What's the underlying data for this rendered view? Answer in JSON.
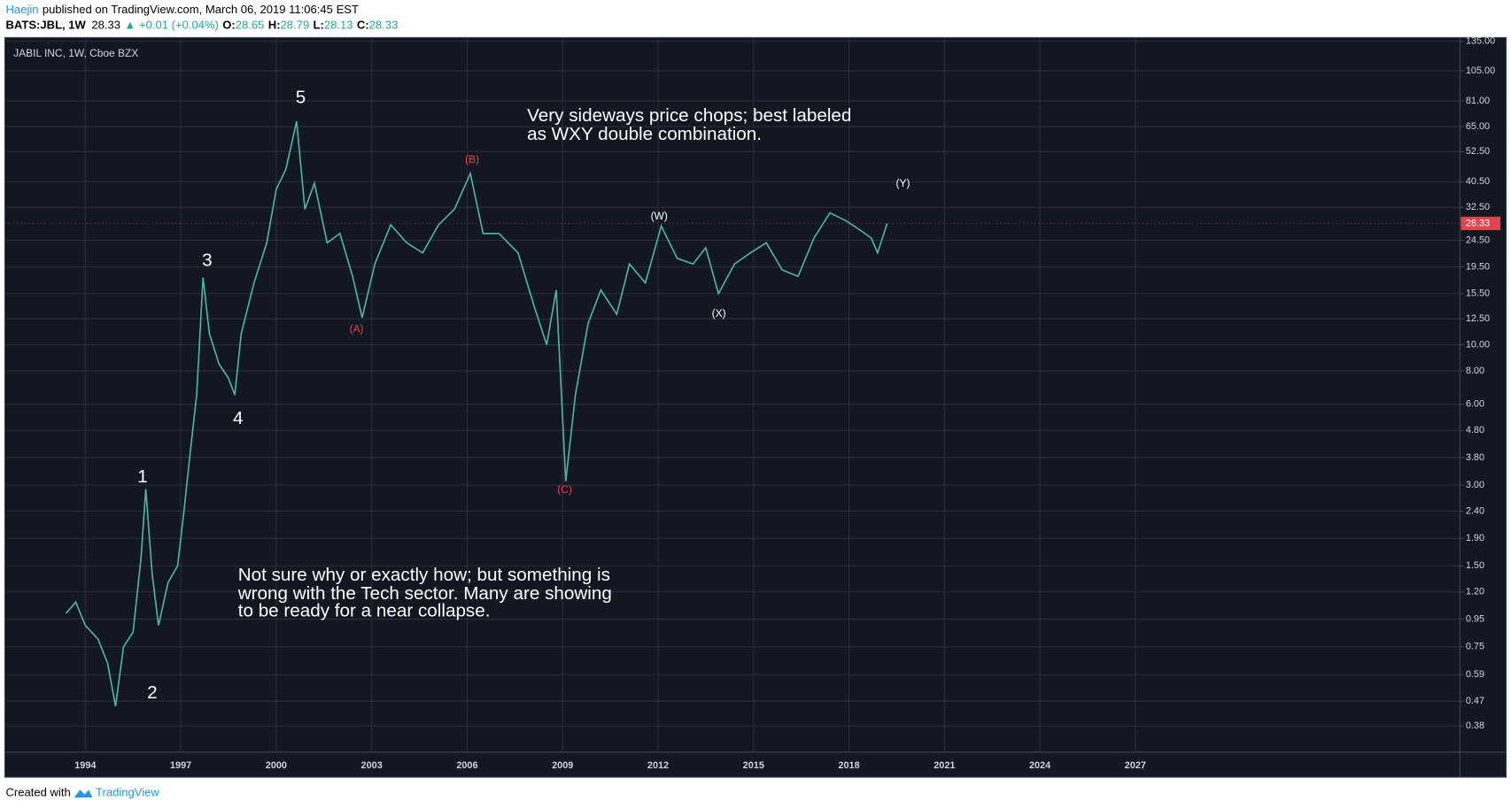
{
  "header": {
    "author": "Haejin",
    "published": "published on TradingView.com, March 06, 2019 11:06:45 EST",
    "symbol": "BATS:JBL, 1W",
    "price": "28.33",
    "change": "▲ +0.01 (+0.04%)",
    "o_label": "O:",
    "o": "28.65",
    "h_label": "H:",
    "h": "28.79",
    "l_label": "L:",
    "l": "28.13",
    "c_label": "C:",
    "c": "28.33"
  },
  "footer": {
    "created": "Created with",
    "brand": "TradingView"
  },
  "chart_data": {
    "type": "line",
    "title": "JABIL INC, 1W, Cboe BZX",
    "log_scale": true,
    "grid": true,
    "xlim": [
      1991.5,
      2037.2
    ],
    "xticks": [
      1994,
      1997,
      2000,
      2003,
      2006,
      2009,
      2012,
      2015,
      2018,
      2021,
      2024,
      2027
    ],
    "ylim": [
      0.306,
      138.4
    ],
    "yticks": [
      {
        "value": 135,
        "label": "135.00"
      },
      {
        "value": 105,
        "label": "105.00"
      },
      {
        "value": 81,
        "label": "81.00"
      },
      {
        "value": 65,
        "label": "65.00"
      },
      {
        "value": 52.5,
        "label": "52.50"
      },
      {
        "value": 40.5,
        "label": "40.50"
      },
      {
        "value": 32.5,
        "label": "32.50"
      },
      {
        "value": 24.5,
        "label": "24.50"
      },
      {
        "value": 19.5,
        "label": "19.50"
      },
      {
        "value": 15.5,
        "label": "15.50"
      },
      {
        "value": 12.5,
        "label": "12.50"
      },
      {
        "value": 10,
        "label": "10.00"
      },
      {
        "value": 8,
        "label": "8.00"
      },
      {
        "value": 6,
        "label": "6.00"
      },
      {
        "value": 4.8,
        "label": "4.80"
      },
      {
        "value": 3.8,
        "label": "3.80"
      },
      {
        "value": 3,
        "label": "3.00"
      },
      {
        "value": 2.4,
        "label": "2.40"
      },
      {
        "value": 1.9,
        "label": "1.90"
      },
      {
        "value": 1.5,
        "label": "1.50"
      },
      {
        "value": 1.2,
        "label": "1.20"
      },
      {
        "value": 0.95,
        "label": "0.95"
      },
      {
        "value": 0.75,
        "label": "0.75"
      },
      {
        "value": 0.59,
        "label": "0.59"
      },
      {
        "value": 0.47,
        "label": "0.47"
      },
      {
        "value": 0.38,
        "label": "0.38"
      }
    ],
    "series": [
      {
        "name": "JBL",
        "color": "#4fb3a6",
        "x": [
          1993.4,
          1993.7,
          1994.0,
          1994.4,
          1994.7,
          1994.95,
          1995.2,
          1995.5,
          1995.75,
          1995.9,
          1996.1,
          1996.3,
          1996.6,
          1996.9,
          1997.1,
          1997.3,
          1997.5,
          1997.7,
          1997.9,
          1998.2,
          1998.5,
          1998.7,
          1998.9,
          1999.3,
          1999.7,
          2000.0,
          2000.3,
          2000.64,
          2000.9,
          2001.2,
          2001.6,
          2002.0,
          2002.4,
          2002.7,
          2003.1,
          2003.6,
          2004.1,
          2004.6,
          2005.1,
          2005.6,
          2006.1,
          2006.5,
          2007.0,
          2007.6,
          2008.1,
          2008.5,
          2008.8,
          2009.1,
          2009.4,
          2009.8,
          2010.2,
          2010.7,
          2011.1,
          2011.6,
          2012.1,
          2012.6,
          2013.1,
          2013.5,
          2013.9,
          2014.4,
          2014.9,
          2015.4,
          2015.9,
          2016.4,
          2016.9,
          2017.4,
          2017.9,
          2018.3,
          2018.7,
          2018.9,
          2019.2
        ],
        "values": [
          1.0,
          1.1,
          0.9,
          0.8,
          0.65,
          0.45,
          0.75,
          0.85,
          1.6,
          2.9,
          1.4,
          0.9,
          1.3,
          1.5,
          2.4,
          4.0,
          6.5,
          17.8,
          11,
          8.5,
          7.5,
          6.5,
          11,
          17,
          24,
          38,
          45,
          68,
          32,
          40,
          24,
          26,
          18,
          12.6,
          20,
          28,
          24,
          22,
          28,
          32,
          43.5,
          26,
          26,
          22,
          14,
          10,
          16,
          3.1,
          6.5,
          12,
          16,
          13,
          20,
          17,
          27.7,
          21,
          20,
          23,
          15.5,
          20,
          22,
          24,
          19,
          18,
          25,
          31,
          29,
          27,
          25,
          22,
          28.33
        ]
      }
    ],
    "last_price": 28.33
  }
}
